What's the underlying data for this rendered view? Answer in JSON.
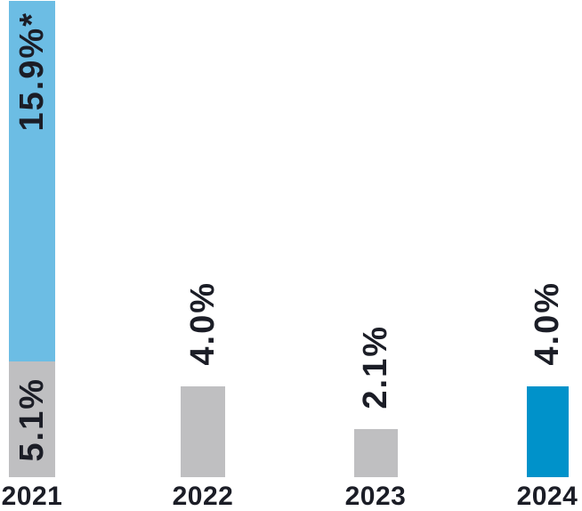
{
  "colors": {
    "background": "#FFFFFF",
    "ink": "#1B1D26",
    "light_blue": "#6CBDE4",
    "dark_blue": "#0092CA",
    "gray": "#BFBFC1"
  },
  "chart_data": {
    "type": "bar",
    "title": "",
    "orientation": "vertical",
    "grid": false,
    "legend": "none",
    "categories": [
      "2021",
      "2022",
      "2023",
      "2024"
    ],
    "unit": "%",
    "ylim": [
      0,
      21
    ],
    "bars": [
      {
        "category": "2021",
        "total": 21.0,
        "segments": [
          {
            "value": 15.9,
            "label": "15.9%*",
            "color": "#6CBDE4",
            "label_position": "inside-top"
          },
          {
            "value": 5.1,
            "label": "5.1%",
            "color": "#BFBFC1",
            "label_position": "inside-center"
          }
        ]
      },
      {
        "category": "2022",
        "total": 4.0,
        "segments": [
          {
            "value": 4.0,
            "label": "4.0%",
            "color": "#BFBFC1",
            "label_position": "above"
          }
        ]
      },
      {
        "category": "2023",
        "total": 2.1,
        "segments": [
          {
            "value": 2.1,
            "label": "2.1%",
            "color": "#BFBFC1",
            "label_position": "above"
          }
        ]
      },
      {
        "category": "2024",
        "total": 4.0,
        "segments": [
          {
            "value": 4.0,
            "label": "4.0%",
            "color": "#0092CA",
            "label_position": "above"
          }
        ]
      }
    ]
  }
}
